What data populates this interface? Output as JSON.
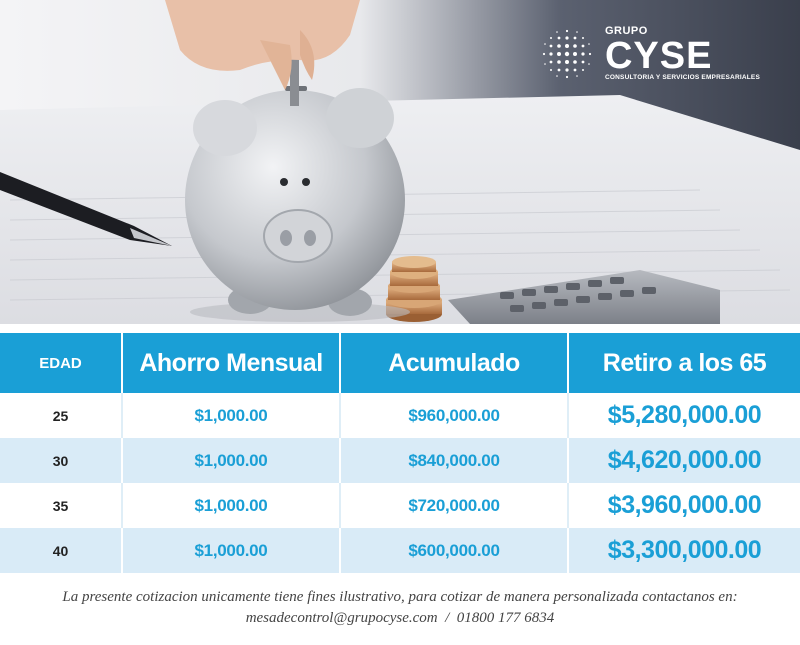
{
  "brand": {
    "grupo": "GRUPO",
    "name": "CYSE",
    "tagline": "CONSULTORIA Y SERVICIOS EMPRESARIALES"
  },
  "table": {
    "headers": [
      "EDAD",
      "Ahorro Mensual",
      "Acumulado",
      "Retiro a los 65"
    ],
    "rows": [
      {
        "edad": "25",
        "ahorro": "$1,000.00",
        "acumulado": "$960,000.00",
        "retiro": "$5,280,000.00"
      },
      {
        "edad": "30",
        "ahorro": "$1,000.00",
        "acumulado": "$840,000.00",
        "retiro": "$4,620,000.00"
      },
      {
        "edad": "35",
        "ahorro": "$1,000.00",
        "acumulado": "$720,000.00",
        "retiro": "$3,960,000.00"
      },
      {
        "edad": "40",
        "ahorro": "$1,000.00",
        "acumulado": "$600,000.00",
        "retiro": "$3,300,000.00"
      }
    ]
  },
  "footer": {
    "line1": "La presente cotizacion unicamente tiene fines ilustrativo, para cotizar de manera personalizada contactanos en:",
    "line2": "mesadecontrol@grupocyse.com  /  01800 177 6834"
  },
  "colors": {
    "accent": "#1a9fd6",
    "row_alt": "#d9ebf7"
  }
}
